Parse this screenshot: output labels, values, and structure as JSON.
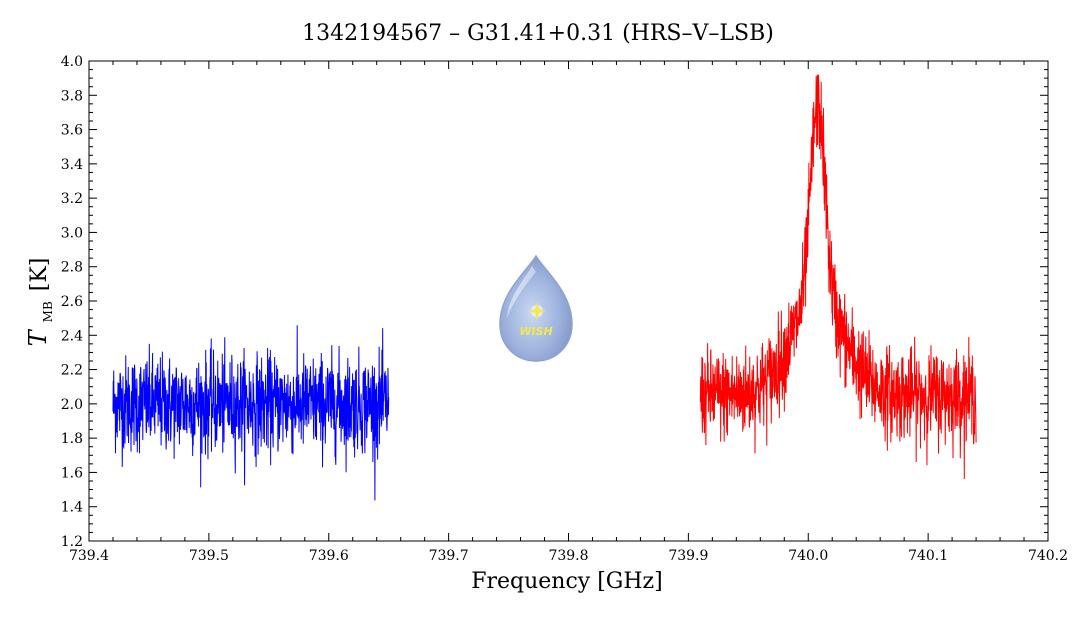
{
  "chart_data": {
    "type": "line",
    "title": "1342194567 – G31.41+0.31 (HRS–V–LSB)",
    "xlabel": "Frequency [GHz]",
    "ylabel": {
      "symbol": "T",
      "subscript": "MB",
      "unit": "[K]"
    },
    "xlim": [
      739.4,
      740.2
    ],
    "ylim": [
      1.2,
      4.0
    ],
    "x_ticks": [
      "739.4",
      "739.5",
      "739.6",
      "739.7",
      "739.8",
      "739.9",
      "740.0",
      "740.1",
      "740.2"
    ],
    "y_ticks": [
      "1.2",
      "1.4",
      "1.6",
      "1.8",
      "2.0",
      "2.2",
      "2.4",
      "2.6",
      "2.8",
      "3.0",
      "3.2",
      "3.4",
      "3.6",
      "3.8",
      "4.0"
    ],
    "grid": false,
    "series": [
      {
        "color": "#0000ff",
        "x_range": [
          739.42,
          739.65
        ],
        "baseline": 2.0,
        "noise_amplitude": 0.28,
        "peaks": []
      },
      {
        "color": "#ff0000",
        "x_range": [
          739.91,
          740.14
        ],
        "baseline": 2.05,
        "noise_amplitude": 0.26,
        "peaks": [
          {
            "center": 740.008,
            "amplitude": 1.15,
            "width": 0.006
          },
          {
            "center": 740.008,
            "amplitude": 0.55,
            "width": 0.022
          }
        ]
      }
    ]
  },
  "logo": {
    "text": "WISH"
  }
}
